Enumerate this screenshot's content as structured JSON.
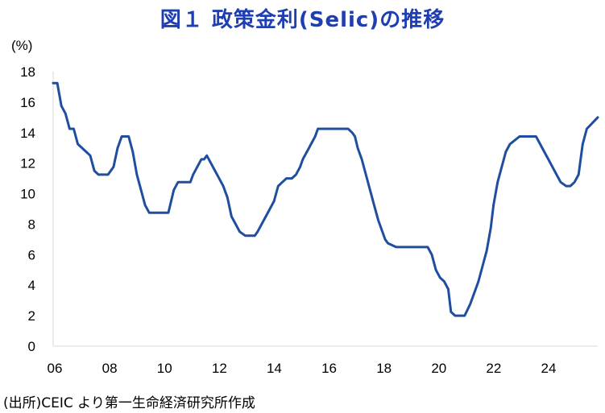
{
  "title": "図１ 政策金利(Selic)の推移",
  "source": "(出所)CEIC より第一生命経済研究所作成",
  "line_color": "#1f4e9e",
  "chart_data": {
    "type": "line",
    "title": "政策金利(Selic)の推移",
    "ylabel": "(%)",
    "xlabel": "",
    "ylim": [
      0,
      18
    ],
    "yticks": [
      0,
      2,
      4,
      6,
      8,
      10,
      12,
      14,
      16,
      18
    ],
    "xlim": [
      2006,
      2025.85
    ],
    "xticks": [
      2006,
      2008,
      2010,
      2012,
      2014,
      2016,
      2018,
      2020,
      2022,
      2024
    ],
    "xtick_labels": [
      "06",
      "08",
      "10",
      "12",
      "14",
      "16",
      "18",
      "20",
      "22",
      "24"
    ],
    "grid": false,
    "series": [
      {
        "x": [
          2006.0,
          2006.15,
          2006.3,
          2006.45,
          2006.6,
          2006.75,
          2006.9,
          2007.05,
          2007.2,
          2007.35,
          2007.5,
          2007.65,
          2007.8,
          2008.0,
          2008.2,
          2008.35,
          2008.5,
          2008.6,
          2008.75,
          2008.9,
          2009.05,
          2009.2,
          2009.35,
          2009.5,
          2009.55,
          2009.7,
          2009.9,
          2010.2,
          2010.3,
          2010.4,
          2010.55,
          2010.7,
          2011.0,
          2011.1,
          2011.25,
          2011.4,
          2011.5,
          2011.6,
          2011.75,
          2011.9,
          2012.05,
          2012.2,
          2012.35,
          2012.5,
          2012.65,
          2012.8,
          2013.0,
          2013.2,
          2013.35,
          2013.45,
          2013.6,
          2013.75,
          2013.9,
          2014.05,
          2014.2,
          2014.35,
          2014.5,
          2014.7,
          2014.85,
          2015.0,
          2015.1,
          2015.25,
          2015.4,
          2015.55,
          2015.65,
          2016.0,
          2016.5,
          2016.75,
          2016.9,
          2017.0,
          2017.1,
          2017.25,
          2017.4,
          2017.55,
          2017.7,
          2017.85,
          2018.0,
          2018.1,
          2018.2,
          2018.5,
          2019.0,
          2019.55,
          2019.65,
          2019.8,
          2019.95,
          2020.1,
          2020.25,
          2020.4,
          2020.5,
          2020.65,
          2020.8,
          2021.0,
          2021.2,
          2021.35,
          2021.5,
          2021.65,
          2021.8,
          2021.95,
          2022.05,
          2022.2,
          2022.35,
          2022.5,
          2022.65,
          2023.0,
          2023.5,
          2023.6,
          2023.75,
          2023.9,
          2024.05,
          2024.2,
          2024.35,
          2024.5,
          2024.7,
          2024.85,
          2025.0,
          2025.15,
          2025.3,
          2025.45,
          2025.85
        ],
        "y": [
          17.25,
          17.25,
          15.75,
          15.25,
          14.25,
          14.25,
          13.25,
          13.0,
          12.75,
          12.5,
          11.5,
          11.25,
          11.25,
          11.25,
          11.75,
          13.0,
          13.75,
          13.75,
          13.75,
          12.75,
          11.25,
          10.25,
          9.25,
          8.75,
          8.75,
          8.75,
          8.75,
          8.75,
          9.5,
          10.25,
          10.75,
          10.75,
          10.75,
          11.25,
          11.75,
          12.25,
          12.25,
          12.5,
          12.0,
          11.5,
          11.0,
          10.5,
          9.75,
          8.5,
          8.0,
          7.5,
          7.25,
          7.25,
          7.25,
          7.5,
          8.0,
          8.5,
          9.0,
          9.5,
          10.5,
          10.75,
          11.0,
          11.0,
          11.25,
          11.75,
          12.25,
          12.75,
          13.25,
          13.75,
          14.25,
          14.25,
          14.25,
          14.25,
          14.0,
          13.75,
          13.0,
          12.25,
          11.25,
          10.25,
          9.25,
          8.25,
          7.5,
          7.0,
          6.75,
          6.5,
          6.5,
          6.5,
          6.5,
          6.0,
          5.0,
          4.5,
          4.25,
          3.75,
          2.25,
          2.0,
          2.0,
          2.0,
          2.75,
          3.5,
          4.25,
          5.25,
          6.25,
          7.75,
          9.25,
          10.75,
          11.75,
          12.75,
          13.25,
          13.75,
          13.75,
          13.75,
          13.25,
          12.75,
          12.25,
          11.75,
          11.25,
          10.75,
          10.5,
          10.5,
          10.75,
          11.25,
          13.25,
          14.25,
          15.0
        ]
      }
    ]
  }
}
